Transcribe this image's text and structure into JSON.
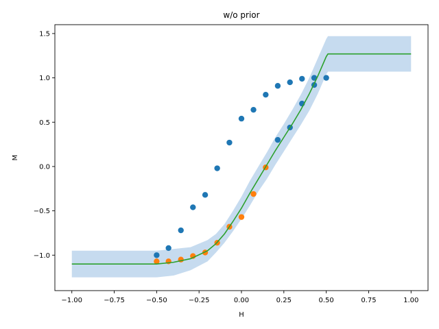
{
  "chart_data": {
    "type": "scatter",
    "title": "w/o prior",
    "xlabel": "H",
    "ylabel": "M",
    "xlim": [
      -1.1,
      1.1
    ],
    "ylim": [
      -1.4,
      1.6
    ],
    "grid": false,
    "xticks": [
      -1.0,
      -0.75,
      -0.5,
      -0.25,
      0.0,
      0.25,
      0.5,
      0.75,
      1.0
    ],
    "xtick_labels": [
      "−1.00",
      "−0.75",
      "−0.50",
      "−0.25",
      "0.00",
      "0.25",
      "0.50",
      "0.75",
      "1.00"
    ],
    "yticks": [
      -1.0,
      -0.5,
      0.0,
      0.5,
      1.0,
      1.5
    ],
    "ytick_labels": [
      "−1.0",
      "−0.5",
      "0.0",
      "0.5",
      "1.0",
      "1.5"
    ],
    "colors": {
      "blue": "#1f77b4",
      "orange": "#ff7f0e",
      "green": "#2ca02c",
      "band": "#c6dbef"
    },
    "series": [
      {
        "kind": "scatter",
        "color": "#1f77b4",
        "x": [
          -0.5,
          -0.43,
          -0.357,
          -0.286,
          -0.214,
          -0.143,
          -0.071,
          0.0,
          0.071,
          0.143,
          0.214,
          0.286,
          0.357,
          0.429,
          0.5,
          0.429,
          0.357,
          0.286,
          0.214
        ],
        "y": [
          -1.0,
          -0.92,
          -0.72,
          -0.46,
          -0.32,
          -0.02,
          0.27,
          0.54,
          0.64,
          0.81,
          0.91,
          0.95,
          0.99,
          1.0,
          1.0,
          0.92,
          0.71,
          0.44,
          0.3
        ]
      },
      {
        "kind": "scatter",
        "color": "#ff7f0e",
        "x": [
          -0.5,
          -0.43,
          -0.357,
          -0.286,
          -0.214,
          -0.143,
          -0.071,
          0.0,
          0.071,
          0.143
        ],
        "y": [
          -1.07,
          -1.07,
          -1.05,
          -1.01,
          -0.97,
          -0.86,
          -0.68,
          -0.57,
          -0.31,
          -0.01
        ]
      },
      {
        "kind": "line",
        "color": "#2ca02c",
        "x": [
          -1.0,
          -0.5,
          -0.4,
          -0.3,
          -0.2,
          -0.15,
          -0.1,
          -0.05,
          0.0,
          0.05,
          0.1,
          0.15,
          0.2,
          0.25,
          0.3,
          0.35,
          0.4,
          0.45,
          0.5,
          0.51,
          1.0
        ],
        "y": [
          -1.1,
          -1.1,
          -1.08,
          -1.04,
          -0.95,
          -0.87,
          -0.76,
          -0.62,
          -0.47,
          -0.3,
          -0.14,
          0.02,
          0.18,
          0.33,
          0.48,
          0.64,
          0.82,
          1.02,
          1.24,
          1.27,
          1.27
        ]
      },
      {
        "kind": "band",
        "color": "#c6dbef",
        "x": [
          -1.0,
          -0.5,
          -0.4,
          -0.3,
          -0.2,
          -0.15,
          -0.1,
          -0.05,
          0.0,
          0.05,
          0.1,
          0.15,
          0.2,
          0.25,
          0.3,
          0.35,
          0.4,
          0.45,
          0.5,
          0.51,
          1.0
        ],
        "lower": [
          -1.25,
          -1.25,
          -1.23,
          -1.17,
          -1.07,
          -0.97,
          -0.86,
          -0.73,
          -0.59,
          -0.44,
          -0.28,
          -0.14,
          0.02,
          0.17,
          0.32,
          0.47,
          0.63,
          0.82,
          1.04,
          1.07,
          1.07
        ],
        "upper": [
          -0.95,
          -0.95,
          -0.93,
          -0.91,
          -0.83,
          -0.76,
          -0.65,
          -0.5,
          -0.34,
          -0.16,
          0.0,
          0.16,
          0.33,
          0.48,
          0.64,
          0.81,
          1.0,
          1.22,
          1.44,
          1.47,
          1.47
        ]
      }
    ]
  }
}
